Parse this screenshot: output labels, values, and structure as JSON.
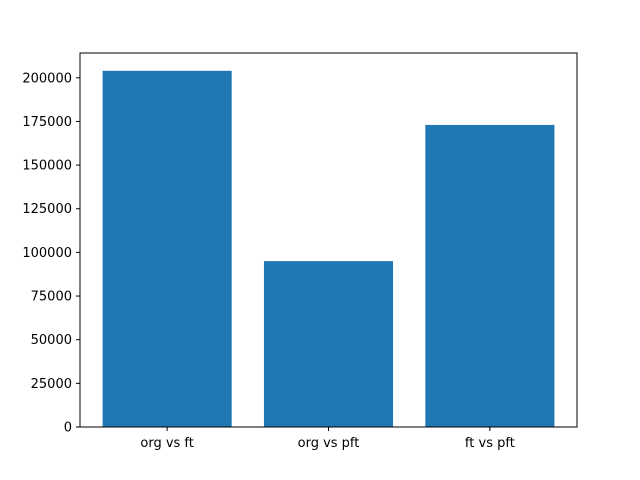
{
  "figure": {
    "background": "#ffffff",
    "axes_background": "#ffffff",
    "spine_color": "#000000",
    "tick_color": "#000000"
  },
  "chart_data": {
    "type": "bar",
    "title": "",
    "xlabel": "",
    "ylabel": "",
    "categories": [
      "org vs ft",
      "org vs pft",
      "ft vs pft"
    ],
    "values": [
      204000,
      95000,
      173000
    ],
    "bar_color": "#1f77b4",
    "bar_width_fraction": 0.8,
    "ylim": [
      0,
      214200
    ],
    "yticks": [
      0,
      25000,
      50000,
      75000,
      100000,
      125000,
      150000,
      175000,
      200000
    ],
    "ytick_labels": [
      "0",
      "25000",
      "50000",
      "75000",
      "100000",
      "125000",
      "150000",
      "175000",
      "200000"
    ],
    "grid": false,
    "legend": false
  }
}
